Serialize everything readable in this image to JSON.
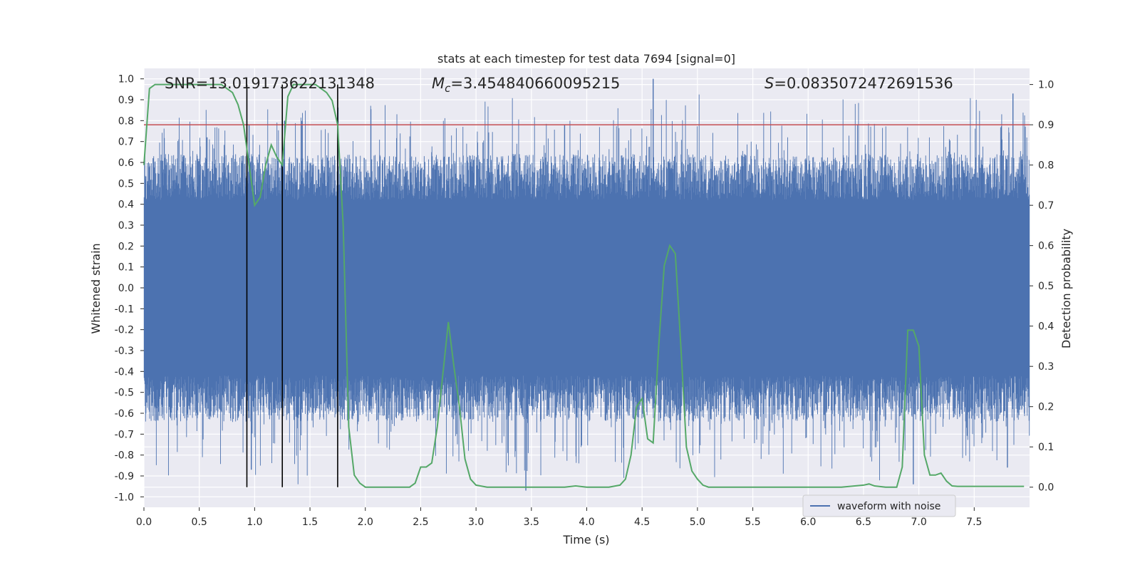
{
  "chart_data": {
    "type": "line",
    "title": "stats at each timestep for test data 7694 [signal=0]",
    "xlabel": "Time (s)",
    "ylabel_left": "Whitened strain",
    "ylabel_right": "Detection probability",
    "xlim": [
      0.0,
      8.0
    ],
    "ylim_left": [
      -1.05,
      1.05
    ],
    "ylim_right": [
      -0.05,
      1.04
    ],
    "x_ticks": [
      "0.0",
      "0.5",
      "1.0",
      "1.5",
      "2.0",
      "2.5",
      "3.0",
      "3.5",
      "4.0",
      "4.5",
      "5.0",
      "5.5",
      "6.0",
      "6.5",
      "7.0",
      "7.5"
    ],
    "y_ticks_left": [
      "1.0",
      "0.9",
      "0.8",
      "0.7",
      "0.6",
      "0.5",
      "0.4",
      "0.3",
      "0.2",
      "0.1",
      "0.0",
      "-0.1",
      "-0.2",
      "-0.3",
      "-0.4",
      "-0.5",
      "-0.6",
      "-0.7",
      "-0.8",
      "-0.9",
      "-1.0"
    ],
    "y_ticks_right": [
      "1.0",
      "0.9",
      "0.8",
      "0.7",
      "0.6",
      "0.5",
      "0.4",
      "0.3",
      "0.2",
      "0.1",
      "0.0"
    ],
    "annotations": {
      "snr": "SNR=13.019173622131348",
      "mc_symbol": "M",
      "mc_sub": "c",
      "mc_value": "=3.454840660095215",
      "s_symbol": "S",
      "s_value": "=0.0835072472691536"
    },
    "threshold": {
      "value": 0.9,
      "color": "#c44e52"
    },
    "vertical_markers": [
      0.93,
      1.25,
      1.75
    ],
    "legend": {
      "label": "waveform with noise",
      "placement": "lower right"
    },
    "series": [
      {
        "name": "waveform with noise",
        "axis": "left",
        "color": "#4c72b0",
        "envelope_max": 0.42,
        "peaks_up": [
          [
            0.57,
            0.72
          ],
          [
            0.95,
            0.78
          ],
          [
            1.27,
            0.8
          ],
          [
            3.8,
            0.78
          ],
          [
            4.6,
            1.0
          ],
          [
            7.85,
            0.93
          ]
        ],
        "peaks_down": [
          [
            0.97,
            -0.87
          ],
          [
            3.45,
            -0.97
          ],
          [
            6.95,
            -0.94
          ],
          [
            7.8,
            -0.86
          ]
        ]
      },
      {
        "name": "detection probability",
        "axis": "right",
        "color": "#55a868",
        "x": [
          0.0,
          0.05,
          0.1,
          0.2,
          0.3,
          0.4,
          0.5,
          0.6,
          0.7,
          0.75,
          0.8,
          0.85,
          0.9,
          0.95,
          1.0,
          1.05,
          1.1,
          1.15,
          1.2,
          1.25,
          1.3,
          1.35,
          1.4,
          1.45,
          1.5,
          1.55,
          1.6,
          1.65,
          1.7,
          1.75,
          1.8,
          1.85,
          1.9,
          1.95,
          2.0,
          2.1,
          2.2,
          2.3,
          2.4,
          2.45,
          2.5,
          2.55,
          2.6,
          2.65,
          2.7,
          2.75,
          2.8,
          2.85,
          2.9,
          2.95,
          3.0,
          3.1,
          3.5,
          3.8,
          3.9,
          4.0,
          4.2,
          4.3,
          4.35,
          4.4,
          4.45,
          4.5,
          4.55,
          4.6,
          4.65,
          4.7,
          4.75,
          4.8,
          4.85,
          4.9,
          4.95,
          5.0,
          5.05,
          5.1,
          5.2,
          5.5,
          6.0,
          6.3,
          6.5,
          6.55,
          6.6,
          6.7,
          6.8,
          6.85,
          6.9,
          6.95,
          7.0,
          7.05,
          7.1,
          7.15,
          7.2,
          7.25,
          7.3,
          7.35,
          7.5,
          7.95
        ],
        "values": [
          0.8,
          0.99,
          1.0,
          1.0,
          1.0,
          1.0,
          1.0,
          1.0,
          1.0,
          0.99,
          0.98,
          0.95,
          0.9,
          0.8,
          0.7,
          0.72,
          0.8,
          0.85,
          0.82,
          0.8,
          0.97,
          1.0,
          1.0,
          1.0,
          1.0,
          1.0,
          0.99,
          0.98,
          0.96,
          0.9,
          0.65,
          0.15,
          0.03,
          0.01,
          0.0,
          0.0,
          0.0,
          0.0,
          0.0,
          0.01,
          0.05,
          0.05,
          0.06,
          0.15,
          0.28,
          0.41,
          0.3,
          0.2,
          0.07,
          0.02,
          0.005,
          0.0,
          0.0,
          0.0,
          0.003,
          0.0,
          0.0,
          0.005,
          0.02,
          0.08,
          0.2,
          0.22,
          0.12,
          0.11,
          0.35,
          0.55,
          0.6,
          0.58,
          0.35,
          0.1,
          0.04,
          0.02,
          0.005,
          0.0,
          0.0,
          0.0,
          0.0,
          0.0,
          0.005,
          0.008,
          0.003,
          0.0,
          0.0,
          0.05,
          0.39,
          0.39,
          0.35,
          0.08,
          0.03,
          0.03,
          0.035,
          0.015,
          0.003,
          0.002,
          0.002,
          0.002
        ]
      }
    ]
  }
}
